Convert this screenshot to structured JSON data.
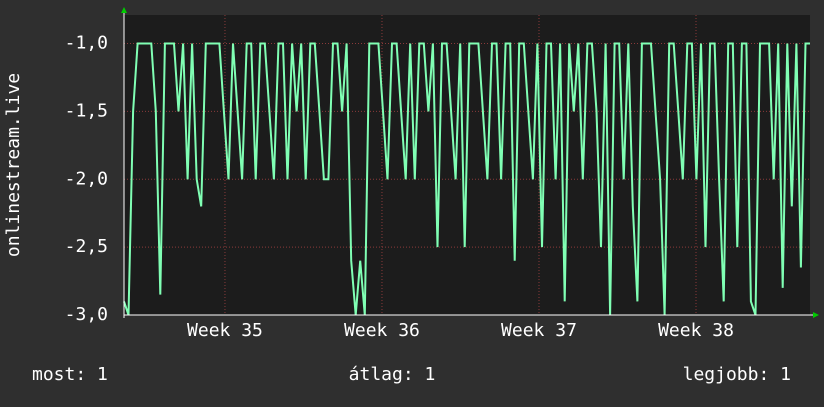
{
  "chart_data": {
    "type": "line",
    "y_label": "onlinestream.live",
    "series": [
      {
        "color": "#80ffb4",
        "values": [
          -2.9,
          -3,
          -1.5,
          -1,
          -1,
          -1,
          -1,
          -1.5,
          -2.85,
          -1,
          -1,
          -1,
          -1.5,
          -1,
          -2,
          -1,
          -2,
          -2.2,
          -1,
          -1,
          -1,
          -1,
          -1.5,
          -2,
          -1,
          -1.5,
          -2,
          -1,
          -1,
          -2,
          -1,
          -1,
          -1.5,
          -2,
          -1,
          -1,
          -2,
          -1,
          -1.5,
          -1,
          -2,
          -1,
          -1,
          -1.5,
          -2,
          -2,
          -1,
          -1,
          -1.5,
          -1,
          -2.6,
          -3,
          -2.6,
          -3,
          -1,
          -1,
          -1,
          -1.5,
          -2,
          -1,
          -1,
          -1.5,
          -2,
          -1,
          -2,
          -1,
          -1,
          -1.5,
          -1,
          -2.5,
          -1,
          -1,
          -1.5,
          -2,
          -1,
          -2.5,
          -1,
          -1,
          -1,
          -1.5,
          -2,
          -1,
          -1,
          -2,
          -1,
          -1,
          -2.6,
          -1,
          -1,
          -1.5,
          -2,
          -1,
          -2.5,
          -1,
          -1,
          -2,
          -1,
          -2.9,
          -1,
          -1.5,
          -1,
          -2,
          -1,
          -1,
          -1.5,
          -2.5,
          -1,
          -3,
          -1,
          -1,
          -2,
          -1,
          -2.2,
          -2.9,
          -1,
          -1,
          -1,
          -1.5,
          -2,
          -3,
          -1,
          -1,
          -1.5,
          -2,
          -1,
          -1,
          -2,
          -1,
          -2.5,
          -1,
          -1,
          -2,
          -2.9,
          -1,
          -1,
          -2.5,
          -1,
          -1,
          -2.9,
          -3,
          -1,
          -1,
          -1,
          -2,
          -1,
          -2.8,
          -1,
          -2.2,
          -1,
          -2.65,
          -1,
          -1
        ]
      }
    ],
    "xlim": [
      34.357,
      38.726
    ],
    "xticks": [
      {
        "value": 35,
        "label": "Week 35"
      },
      {
        "value": 36,
        "label": "Week 36"
      },
      {
        "value": 37,
        "label": "Week 37"
      },
      {
        "value": 38,
        "label": "Week 38"
      }
    ],
    "ylim": [
      -3.0,
      -0.79
    ],
    "yticks": [
      {
        "value": -3,
        "label": "-3,0"
      },
      {
        "value": -2.5,
        "label": "-2,5"
      },
      {
        "value": -2,
        "label": "-2,0"
      },
      {
        "value": -1.5,
        "label": "-1,5"
      },
      {
        "value": -1,
        "label": "-1,0"
      }
    ],
    "grid": true,
    "legend": [
      {
        "label": "most:",
        "value": "1"
      },
      {
        "label": "átlag:",
        "value": "1"
      },
      {
        "label": "legjobb:",
        "value": "1"
      }
    ]
  }
}
